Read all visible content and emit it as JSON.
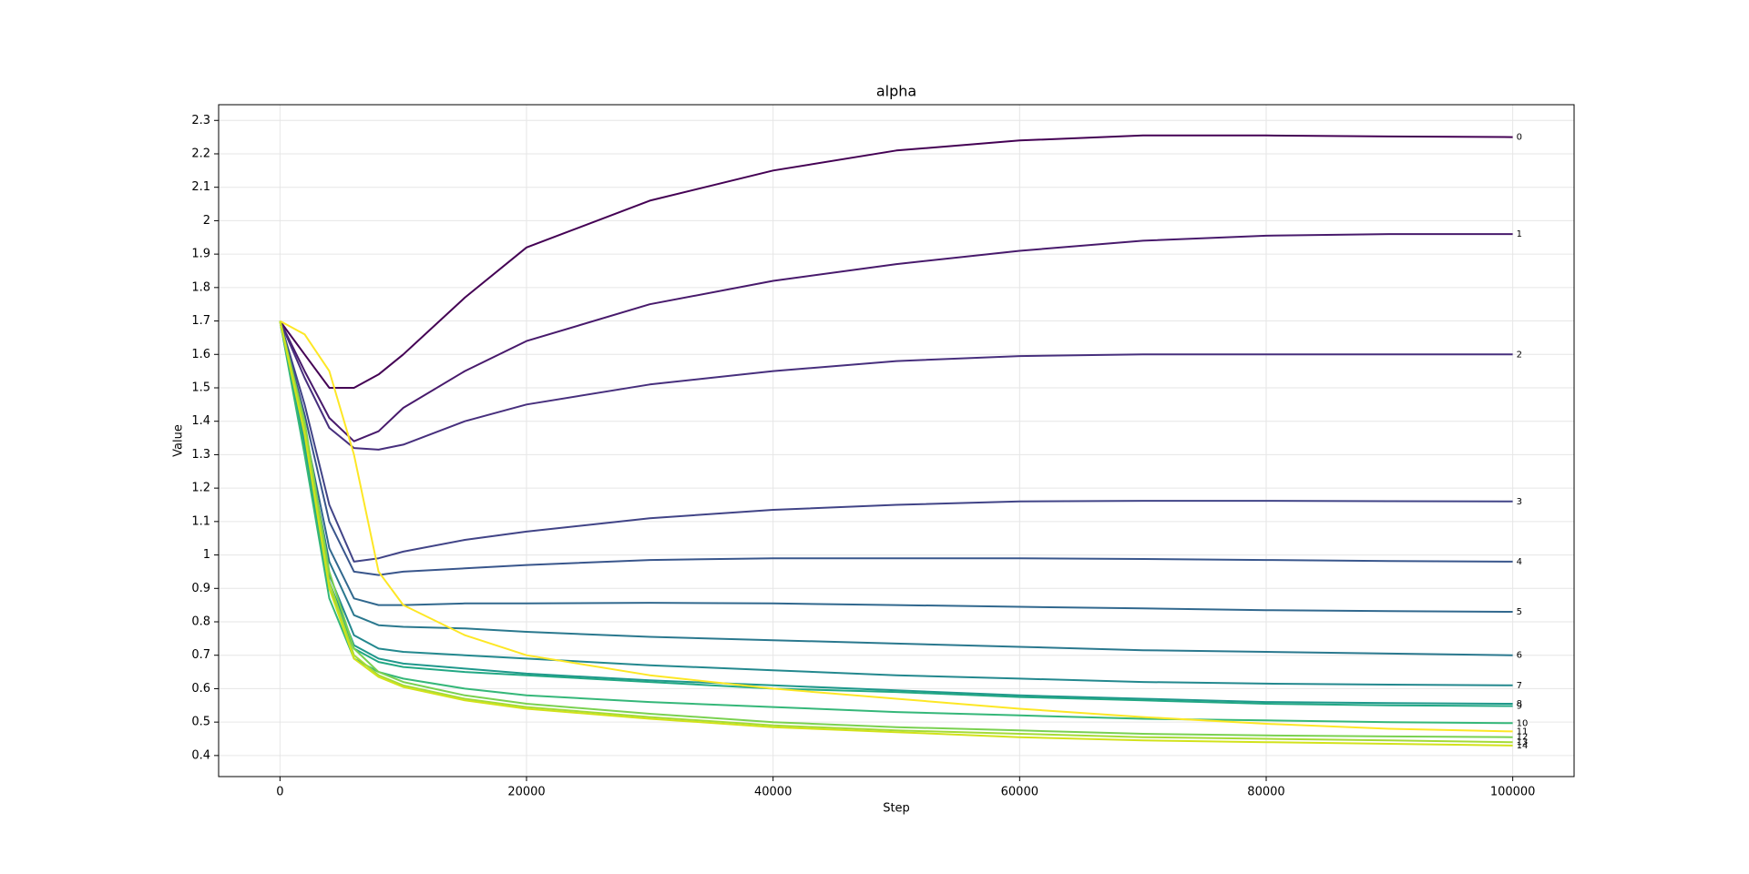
{
  "chart_data": {
    "type": "line",
    "title": "alpha",
    "x_label": "Step",
    "y_label": "Value",
    "x": [
      0,
      2000,
      4000,
      6000,
      8000,
      10000,
      15000,
      20000,
      30000,
      40000,
      50000,
      60000,
      70000,
      80000,
      90000,
      100000
    ],
    "xlim": [
      -4977,
      104977
    ],
    "xticks": [
      0,
      20000,
      40000,
      60000,
      80000,
      100000
    ],
    "ylim": [
      0.337,
      2.347
    ],
    "yticks": [
      0.4,
      0.5,
      0.6,
      0.7,
      0.8,
      0.9,
      1.0,
      1.1,
      1.2,
      1.3,
      1.4,
      1.5,
      1.6,
      1.7,
      1.8,
      1.9,
      2.0,
      2.1,
      2.2,
      2.3
    ],
    "grid": true,
    "series": [
      {
        "name": "0",
        "color": "#440154",
        "values": [
          1.7,
          1.6,
          1.5,
          1.5,
          1.54,
          1.6,
          1.77,
          1.92,
          2.06,
          2.15,
          2.21,
          2.24,
          2.255,
          2.255,
          2.252,
          2.25
        ]
      },
      {
        "name": "1",
        "color": "#481a6c",
        "values": [
          1.7,
          1.55,
          1.41,
          1.34,
          1.37,
          1.44,
          1.55,
          1.64,
          1.75,
          1.82,
          1.87,
          1.91,
          1.94,
          1.955,
          1.96,
          1.96
        ]
      },
      {
        "name": "2",
        "color": "#472f7d",
        "values": [
          1.7,
          1.53,
          1.38,
          1.32,
          1.315,
          1.33,
          1.4,
          1.45,
          1.51,
          1.55,
          1.58,
          1.595,
          1.6,
          1.6,
          1.6,
          1.6
        ]
      },
      {
        "name": "3",
        "color": "#414487",
        "values": [
          1.7,
          1.45,
          1.15,
          0.98,
          0.99,
          1.01,
          1.045,
          1.07,
          1.11,
          1.135,
          1.15,
          1.16,
          1.162,
          1.162,
          1.161,
          1.16
        ]
      },
      {
        "name": "4",
        "color": "#39568c",
        "values": [
          1.7,
          1.42,
          1.1,
          0.95,
          0.94,
          0.95,
          0.96,
          0.97,
          0.985,
          0.99,
          0.99,
          0.99,
          0.988,
          0.985,
          0.982,
          0.98
        ]
      },
      {
        "name": "5",
        "color": "#31688e",
        "values": [
          1.7,
          1.38,
          1.02,
          0.87,
          0.85,
          0.85,
          0.855,
          0.855,
          0.857,
          0.855,
          0.85,
          0.845,
          0.84,
          0.835,
          0.832,
          0.83
        ]
      },
      {
        "name": "6",
        "color": "#2a788e",
        "values": [
          1.7,
          1.36,
          0.98,
          0.82,
          0.79,
          0.785,
          0.78,
          0.77,
          0.755,
          0.745,
          0.735,
          0.725,
          0.715,
          0.71,
          0.705,
          0.7
        ]
      },
      {
        "name": "7",
        "color": "#23888e",
        "values": [
          1.7,
          1.34,
          0.94,
          0.76,
          0.72,
          0.71,
          0.7,
          0.69,
          0.67,
          0.655,
          0.64,
          0.63,
          0.62,
          0.615,
          0.612,
          0.61
        ]
      },
      {
        "name": "8",
        "color": "#1f988b",
        "values": [
          1.7,
          1.33,
          0.92,
          0.73,
          0.69,
          0.675,
          0.66,
          0.645,
          0.625,
          0.61,
          0.595,
          0.58,
          0.57,
          0.56,
          0.557,
          0.555
        ]
      },
      {
        "name": "9",
        "color": "#22a884",
        "values": [
          1.7,
          1.32,
          0.9,
          0.72,
          0.68,
          0.665,
          0.65,
          0.64,
          0.62,
          0.6,
          0.59,
          0.575,
          0.565,
          0.555,
          0.55,
          0.548
        ]
      },
      {
        "name": "10",
        "color": "#35b779",
        "values": [
          1.7,
          1.3,
          0.87,
          0.69,
          0.65,
          0.63,
          0.6,
          0.58,
          0.56,
          0.545,
          0.53,
          0.52,
          0.51,
          0.505,
          0.5,
          0.497
        ]
      },
      {
        "name": "11",
        "color": "#fde725",
        "values": [
          1.7,
          1.66,
          1.55,
          1.3,
          0.95,
          0.85,
          0.76,
          0.7,
          0.64,
          0.6,
          0.57,
          0.54,
          0.515,
          0.495,
          0.48,
          0.472
        ]
      },
      {
        "name": "12",
        "color": "#7ad151",
        "values": [
          1.7,
          1.4,
          0.95,
          0.72,
          0.65,
          0.62,
          0.58,
          0.555,
          0.525,
          0.5,
          0.485,
          0.475,
          0.465,
          0.46,
          0.457,
          0.455
        ]
      },
      {
        "name": "13",
        "color": "#a5db36",
        "values": [
          1.7,
          1.38,
          0.92,
          0.7,
          0.64,
          0.61,
          0.57,
          0.545,
          0.515,
          0.49,
          0.475,
          0.465,
          0.455,
          0.45,
          0.445,
          0.44
        ]
      },
      {
        "name": "14",
        "color": "#d2e21b",
        "values": [
          1.7,
          1.36,
          0.9,
          0.69,
          0.635,
          0.605,
          0.565,
          0.54,
          0.51,
          0.485,
          0.47,
          0.455,
          0.445,
          0.44,
          0.435,
          0.43
        ]
      }
    ]
  }
}
